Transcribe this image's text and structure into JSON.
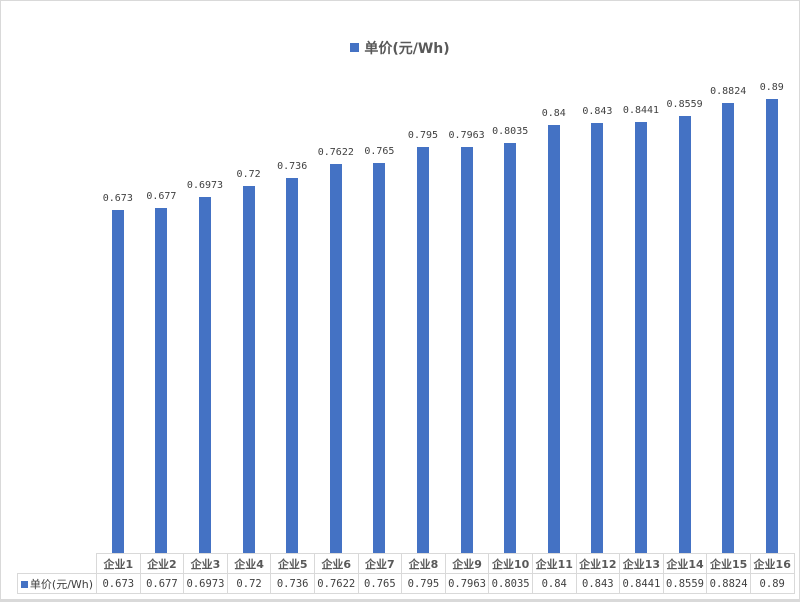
{
  "legend": {
    "label": "单价(元/Wh)",
    "color": "#4472c4"
  },
  "table": {
    "series_label": "单价(元/Wh)",
    "headers": [
      "企业1",
      "企业2",
      "企业3",
      "企业4",
      "企业5",
      "企业6",
      "企业7",
      "企业8",
      "企业9",
      "企业10",
      "企业11",
      "企业12",
      "企业13",
      "企业14",
      "企业15",
      "企业16"
    ],
    "values": [
      "0.673",
      "0.677",
      "0.6973",
      "0.72",
      "0.736",
      "0.7622",
      "0.765",
      "0.795",
      "0.7963",
      "0.8035",
      "0.84",
      "0.843",
      "0.8441",
      "0.8559",
      "0.8824",
      "0.89"
    ]
  },
  "chart_data": {
    "type": "bar",
    "title": "",
    "categories": [
      "企业1",
      "企业2",
      "企业3",
      "企业4",
      "企业5",
      "企业6",
      "企业7",
      "企业8",
      "企业9",
      "企业10",
      "企业11",
      "企业12",
      "企业13",
      "企业14",
      "企业15",
      "企业16"
    ],
    "series": [
      {
        "name": "单价(元/Wh)",
        "color": "#4472c4",
        "values": [
          0.673,
          0.677,
          0.6973,
          0.72,
          0.736,
          0.7622,
          0.765,
          0.795,
          0.7963,
          0.8035,
          0.84,
          0.843,
          0.8441,
          0.8559,
          0.8824,
          0.89
        ]
      }
    ],
    "data_labels": [
      "0.673",
      "0.677",
      "0.6973",
      "0.72",
      "0.736",
      "0.7622",
      "0.765",
      "0.795",
      "0.7963",
      "0.8035",
      "0.84",
      "0.843",
      "0.8441",
      "0.8559",
      "0.8824",
      "0.89"
    ],
    "xlabel": "",
    "ylabel": "",
    "ylim": [
      0,
      0.96
    ],
    "grid": false,
    "legend_position": "top",
    "data_table": true
  }
}
